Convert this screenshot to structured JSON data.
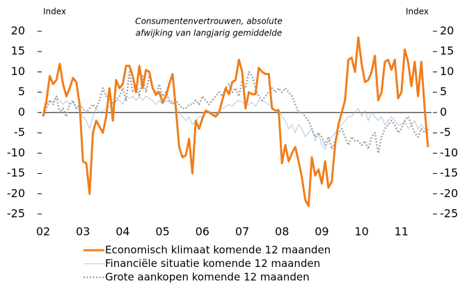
{
  "chart_data": {
    "type": "line",
    "title": [
      "Consumentenvertrouwen,  absolute",
      "afwijking van langjarig gemiddelde"
    ],
    "ylabel": "Index",
    "y2label": "Index",
    "categories": [
      "02",
      null,
      null,
      null,
      null,
      null,
      null,
      null,
      null,
      null,
      null,
      null,
      "03",
      null,
      null,
      null,
      null,
      null,
      null,
      null,
      null,
      null,
      null,
      null,
      "04",
      null,
      null,
      null,
      null,
      null,
      null,
      null,
      null,
      null,
      null,
      null,
      "05",
      null,
      null,
      null,
      null,
      null,
      null,
      null,
      null,
      null,
      null,
      null,
      "06",
      null,
      null,
      null,
      null,
      null,
      null,
      null,
      null,
      null,
      null,
      null,
      "07",
      null,
      null,
      null,
      null,
      null,
      null,
      null,
      null,
      null,
      null,
      null,
      "08",
      null,
      null,
      null,
      null,
      null,
      null,
      null,
      null,
      null,
      null,
      null,
      "09",
      null,
      null,
      null,
      null,
      null,
      null,
      null,
      null,
      null,
      null,
      null,
      "10",
      null,
      null,
      null,
      null,
      null,
      null,
      null,
      null,
      null,
      null,
      null,
      "11",
      null,
      null,
      null,
      null,
      null,
      null,
      null,
      null
    ],
    "series": [
      {
        "name": "Economisch klimaat komende 12 maanden",
        "color": "#f07d1a",
        "style": "solid-thick",
        "values": [
          -1,
          3,
          9,
          7,
          8,
          12,
          7,
          4,
          6,
          8.5,
          7.5,
          2,
          -12,
          -12.5,
          -20,
          -5,
          -2,
          -3.5,
          -5,
          -1,
          6,
          -2,
          8,
          6,
          7,
          11.5,
          11.5,
          9,
          5,
          11.5,
          6,
          10.5,
          10,
          6,
          4.5,
          5,
          2.5,
          4,
          7,
          9.5,
          1,
          -8.5,
          -11,
          -10.5,
          -6.5,
          -15,
          -2,
          -4,
          -1.5,
          0.5,
          0,
          -0.5,
          -1,
          0,
          3,
          6,
          4.5,
          7.5,
          8,
          13,
          10,
          1,
          5,
          4.5,
          4.5,
          11,
          10,
          9.5,
          9.5,
          1,
          0.5,
          0.5,
          -12.5,
          -8,
          -12,
          -10,
          -8.5,
          -12,
          -16,
          -21.5,
          -23,
          -11,
          -15.5,
          -14,
          -17.5,
          -12,
          -18.5,
          -17,
          -8,
          -3,
          0,
          3,
          13,
          13.5,
          10,
          18.5,
          12,
          7.5,
          8,
          10,
          14,
          3,
          5,
          12.5,
          13,
          10.5,
          13,
          3.5,
          5,
          15.5,
          12.5,
          6.5,
          12.5,
          4,
          12.5,
          1,
          -8.5
        ]
      },
      {
        "name": "Financiële situatie komende 12 maanden",
        "color": "#9cb8d8",
        "style": "solid-thin",
        "values": [
          1,
          2,
          3,
          2.5,
          4,
          3,
          2,
          3,
          2,
          2.5,
          1,
          0.5,
          -1,
          -2,
          -4,
          -1,
          1,
          0,
          0.5,
          1,
          1.5,
          2,
          3,
          3,
          2,
          4,
          3.5,
          4,
          3,
          4,
          3,
          4,
          3.5,
          3,
          2,
          3,
          2,
          3,
          2.5,
          3,
          1.5,
          0,
          -1,
          -2,
          -1,
          -3,
          -2,
          -1,
          -1,
          0,
          0.5,
          0,
          -0.5,
          0.5,
          1,
          1.5,
          2,
          1.5,
          2.5,
          3,
          2.5,
          2,
          2,
          2.5,
          1.5,
          3,
          3,
          2.5,
          2,
          1.5,
          0.5,
          1,
          -1,
          -2,
          -4,
          -3,
          -5,
          -3,
          -4,
          -6,
          -5,
          -4,
          -7,
          -5,
          -8,
          -9,
          -7,
          -6,
          -5,
          -4,
          -3,
          -2,
          -1,
          -1,
          0,
          1,
          -1,
          0.5,
          -2,
          0,
          -1,
          -2,
          -1,
          -3,
          -2,
          -1,
          -2,
          -3,
          -3,
          -2,
          -4,
          -3,
          -2,
          -4,
          -3,
          -4,
          -5
        ]
      },
      {
        "name": "Grote aankopen komende 12 maanden",
        "color": "#a0a0a0",
        "style": "dotted",
        "values": [
          -1,
          1,
          3,
          2,
          4,
          0,
          1,
          -1,
          2,
          3,
          1,
          2,
          1,
          0,
          1,
          2,
          1,
          3,
          6,
          4,
          5,
          2,
          3,
          4,
          6,
          3,
          10,
          5,
          7,
          4,
          9,
          5,
          9,
          6,
          4,
          7,
          4,
          5,
          3,
          2,
          3,
          2,
          1,
          1,
          2,
          2,
          3,
          2,
          4,
          3,
          2,
          3,
          4,
          5,
          4,
          6,
          7,
          5,
          6,
          4,
          8,
          6,
          10,
          9,
          6,
          4,
          3,
          4,
          5,
          6,
          5,
          6,
          5,
          6,
          5,
          4,
          2,
          0,
          0,
          -1,
          -2,
          -4,
          -6,
          -5,
          -6,
          -8,
          -6,
          -9,
          -7,
          -5,
          -4,
          -6,
          -8,
          -6,
          -7,
          -7,
          -8,
          -7,
          -9,
          -6,
          -5,
          -10,
          -6,
          -4,
          -3,
          -2,
          -3,
          -5,
          -4,
          -2,
          -1,
          -3,
          -5,
          -6,
          -4,
          -5,
          -4
        ]
      }
    ],
    "ylim": [
      -25,
      20
    ],
    "yticks": [
      -25,
      -20,
      -15,
      -10,
      -5,
      0,
      5,
      10,
      15,
      20
    ],
    "y2lim": [
      -25,
      20
    ],
    "y2ticks": [
      -25,
      -20,
      -15,
      -10,
      -5,
      0,
      5,
      10,
      15,
      20
    ],
    "legend": "bottom"
  }
}
